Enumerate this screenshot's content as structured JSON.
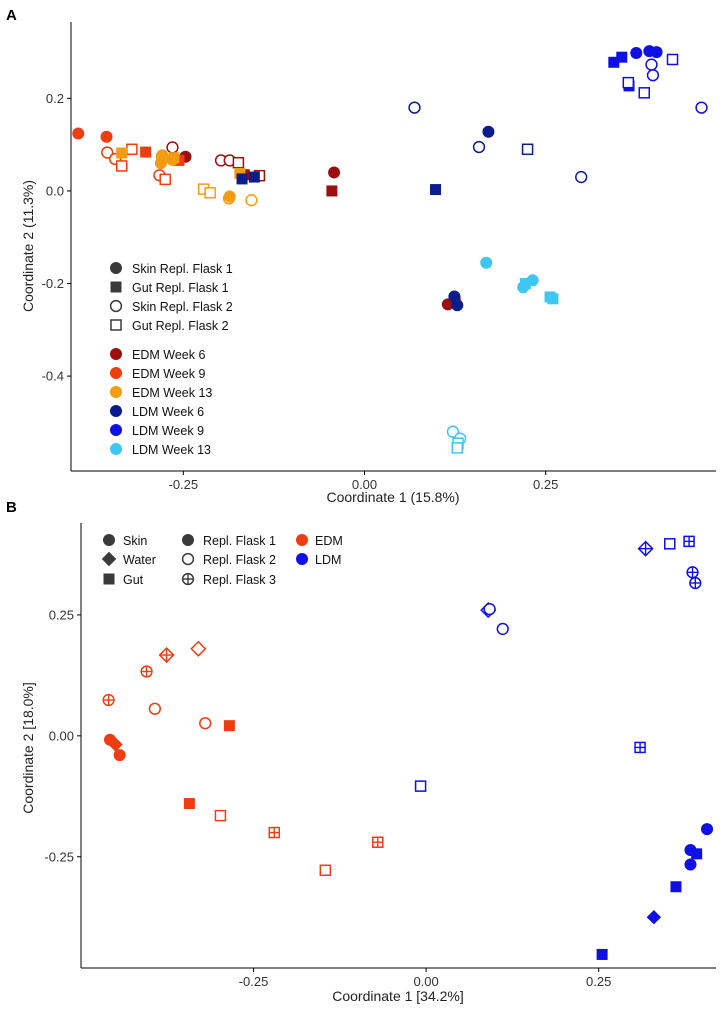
{
  "figure": {
    "colors": {
      "EDM Week 6": "#9b0f0f",
      "EDM Week 9": "#ee3d10",
      "EDM Week 13": "#f39c12",
      "LDM Week 6": "#0b1d8c",
      "LDM Week 9": "#1010e6",
      "LDM Week 13": "#3ec7f2",
      "EDM": "#ee3d10",
      "LDM": "#1010e6",
      "legend_gray": "#3a3a3a"
    }
  },
  "chart_data": [
    {
      "panel": "A",
      "type": "scatter",
      "title": "",
      "xlabel": "Coordinate 1 (15.8%)",
      "ylabel": "Coordinate 2 (11.3%)",
      "xlim": [
        -0.405,
        0.485
      ],
      "ylim": [
        -0.605,
        0.365
      ],
      "xticks": [
        {
          "value": -0.25,
          "label": "-0.25"
        },
        {
          "value": 0,
          "label": "0.00"
        },
        {
          "value": 0.25,
          "label": "0.25"
        }
      ],
      "yticks": [
        {
          "value": 0.2,
          "label": "0.2"
        },
        {
          "value": 0,
          "label": "0.0"
        },
        {
          "value": -0.2,
          "label": "-0.2"
        },
        {
          "value": -0.4,
          "label": "-0.4"
        }
      ],
      "legend": {
        "placement": "bottom-left",
        "shapes": [
          {
            "label": "Skin Repl. Flask 1",
            "shape": "circle",
            "filled": true
          },
          {
            "label": "Gut Repl. Flask 1",
            "shape": "square",
            "filled": true
          },
          {
            "label": "Skin Repl. Flask 2",
            "shape": "circle",
            "filled": false
          },
          {
            "label": "Gut Repl. Flask 2",
            "shape": "square",
            "filled": false
          }
        ],
        "groups": [
          "EDM Week 6",
          "EDM Week 9",
          "EDM Week 13",
          "LDM Week 6",
          "LDM Week 9",
          "LDM Week 13"
        ]
      },
      "points": [
        {
          "x": -0.042,
          "y": 0.04,
          "group": "EDM Week 6",
          "shape": "circle",
          "filled": true
        },
        {
          "x": -0.045,
          "y": 0.0,
          "group": "EDM Week 6",
          "shape": "square",
          "filled": true
        },
        {
          "x": 0.115,
          "y": -0.245,
          "group": "EDM Week 6",
          "shape": "circle",
          "filled": true
        },
        {
          "x": 0.125,
          "y": -0.24,
          "group": "EDM Week 6",
          "shape": "square",
          "filled": true
        },
        {
          "x": -0.247,
          "y": 0.074,
          "group": "EDM Week 6",
          "shape": "circle",
          "filled": true
        },
        {
          "x": -0.198,
          "y": 0.066,
          "group": "EDM Week 6",
          "shape": "circle",
          "filled": false
        },
        {
          "x": -0.186,
          "y": 0.066,
          "group": "EDM Week 6",
          "shape": "circle",
          "filled": false
        },
        {
          "x": -0.265,
          "y": 0.094,
          "group": "EDM Week 6",
          "shape": "circle",
          "filled": false
        },
        {
          "x": -0.174,
          "y": 0.061,
          "group": "EDM Week 6",
          "shape": "square",
          "filled": false
        },
        {
          "x": -0.145,
          "y": 0.033,
          "group": "EDM Week 6",
          "shape": "square",
          "filled": false
        },
        {
          "x": -0.166,
          "y": 0.035,
          "group": "EDM Week 6",
          "shape": "square",
          "filled": true
        },
        {
          "x": -0.395,
          "y": 0.124,
          "group": "EDM Week 9",
          "shape": "circle",
          "filled": true
        },
        {
          "x": -0.356,
          "y": 0.117,
          "group": "EDM Week 9",
          "shape": "circle",
          "filled": true
        },
        {
          "x": -0.302,
          "y": 0.084,
          "group": "EDM Week 9",
          "shape": "square",
          "filled": true
        },
        {
          "x": -0.256,
          "y": 0.066,
          "group": "EDM Week 9",
          "shape": "square",
          "filled": true
        },
        {
          "x": -0.355,
          "y": 0.083,
          "group": "EDM Week 9",
          "shape": "circle",
          "filled": false
        },
        {
          "x": -0.344,
          "y": 0.069,
          "group": "EDM Week 9",
          "shape": "circle",
          "filled": false
        },
        {
          "x": -0.283,
          "y": 0.034,
          "group": "EDM Week 9",
          "shape": "circle",
          "filled": false
        },
        {
          "x": -0.321,
          "y": 0.09,
          "group": "EDM Week 9",
          "shape": "square",
          "filled": false
        },
        {
          "x": -0.335,
          "y": 0.054,
          "group": "EDM Week 9",
          "shape": "square",
          "filled": false
        },
        {
          "x": -0.275,
          "y": 0.025,
          "group": "EDM Week 9",
          "shape": "square",
          "filled": false
        },
        {
          "x": -0.335,
          "y": 0.082,
          "group": "EDM Week 13",
          "shape": "square",
          "filled": true
        },
        {
          "x": -0.279,
          "y": 0.077,
          "group": "EDM Week 13",
          "shape": "circle",
          "filled": true
        },
        {
          "x": -0.265,
          "y": 0.067,
          "group": "EDM Week 13",
          "shape": "circle",
          "filled": true
        },
        {
          "x": -0.281,
          "y": 0.06,
          "group": "EDM Week 13",
          "shape": "circle",
          "filled": true
        },
        {
          "x": -0.263,
          "y": 0.072,
          "group": "EDM Week 13",
          "shape": "square",
          "filled": true
        },
        {
          "x": -0.28,
          "y": 0.07,
          "group": "EDM Week 13",
          "shape": "square",
          "filled": true
        },
        {
          "x": -0.172,
          "y": 0.038,
          "group": "EDM Week 13",
          "shape": "square",
          "filled": true
        },
        {
          "x": -0.222,
          "y": 0.004,
          "group": "EDM Week 13",
          "shape": "square",
          "filled": false
        },
        {
          "x": -0.213,
          "y": -0.004,
          "group": "EDM Week 13",
          "shape": "square",
          "filled": false
        },
        {
          "x": -0.187,
          "y": -0.016,
          "group": "EDM Week 13",
          "shape": "circle",
          "filled": false
        },
        {
          "x": -0.156,
          "y": -0.02,
          "group": "EDM Week 13",
          "shape": "circle",
          "filled": false
        },
        {
          "x": -0.186,
          "y": -0.012,
          "group": "EDM Week 13",
          "shape": "circle",
          "filled": true
        },
        {
          "x": -0.169,
          "y": 0.026,
          "group": "LDM Week 6",
          "shape": "square",
          "filled": true
        },
        {
          "x": -0.152,
          "y": 0.03,
          "group": "LDM Week 6",
          "shape": "square",
          "filled": true
        },
        {
          "x": 0.098,
          "y": 0.003,
          "group": "LDM Week 6",
          "shape": "square",
          "filled": true
        },
        {
          "x": 0.171,
          "y": 0.128,
          "group": "LDM Week 6",
          "shape": "circle",
          "filled": true
        },
        {
          "x": 0.124,
          "y": -0.228,
          "group": "LDM Week 6",
          "shape": "circle",
          "filled": true
        },
        {
          "x": 0.128,
          "y": -0.247,
          "group": "LDM Week 6",
          "shape": "circle",
          "filled": true
        },
        {
          "x": 0.069,
          "y": 0.18,
          "group": "LDM Week 6",
          "shape": "circle",
          "filled": false
        },
        {
          "x": 0.158,
          "y": 0.095,
          "group": "LDM Week 6",
          "shape": "circle",
          "filled": false
        },
        {
          "x": 0.225,
          "y": 0.09,
          "group": "LDM Week 6",
          "shape": "square",
          "filled": false
        },
        {
          "x": 0.299,
          "y": 0.03,
          "group": "LDM Week 6",
          "shape": "circle",
          "filled": false
        },
        {
          "x": 0.375,
          "y": 0.298,
          "group": "LDM Week 9",
          "shape": "circle",
          "filled": true
        },
        {
          "x": 0.393,
          "y": 0.302,
          "group": "LDM Week 9",
          "shape": "circle",
          "filled": true
        },
        {
          "x": 0.403,
          "y": 0.3,
          "group": "LDM Week 9",
          "shape": "circle",
          "filled": true
        },
        {
          "x": 0.344,
          "y": 0.278,
          "group": "LDM Week 9",
          "shape": "square",
          "filled": true
        },
        {
          "x": 0.355,
          "y": 0.289,
          "group": "LDM Week 9",
          "shape": "square",
          "filled": true
        },
        {
          "x": 0.365,
          "y": 0.227,
          "group": "LDM Week 9",
          "shape": "square",
          "filled": true
        },
        {
          "x": 0.364,
          "y": 0.234,
          "group": "LDM Week 9",
          "shape": "square",
          "filled": false
        },
        {
          "x": 0.386,
          "y": 0.212,
          "group": "LDM Week 9",
          "shape": "square",
          "filled": false
        },
        {
          "x": 0.425,
          "y": 0.284,
          "group": "LDM Week 9",
          "shape": "square",
          "filled": false
        },
        {
          "x": 0.396,
          "y": 0.273,
          "group": "LDM Week 9",
          "shape": "circle",
          "filled": false
        },
        {
          "x": 0.398,
          "y": 0.25,
          "group": "LDM Week 9",
          "shape": "circle",
          "filled": false
        },
        {
          "x": 0.465,
          "y": 0.18,
          "group": "LDM Week 9",
          "shape": "circle",
          "filled": false
        },
        {
          "x": 0.168,
          "y": -0.155,
          "group": "LDM Week 13",
          "shape": "circle",
          "filled": true
        },
        {
          "x": 0.219,
          "y": -0.208,
          "group": "LDM Week 13",
          "shape": "circle",
          "filled": true
        },
        {
          "x": 0.232,
          "y": -0.193,
          "group": "LDM Week 13",
          "shape": "circle",
          "filled": true
        },
        {
          "x": 0.222,
          "y": -0.2,
          "group": "LDM Week 13",
          "shape": "square",
          "filled": true
        },
        {
          "x": 0.256,
          "y": -0.229,
          "group": "LDM Week 13",
          "shape": "square",
          "filled": true
        },
        {
          "x": 0.26,
          "y": -0.233,
          "group": "LDM Week 13",
          "shape": "square",
          "filled": true
        },
        {
          "x": 0.122,
          "y": -0.52,
          "group": "LDM Week 13",
          "shape": "circle",
          "filled": false
        },
        {
          "x": 0.132,
          "y": -0.535,
          "group": "LDM Week 13",
          "shape": "circle",
          "filled": false
        },
        {
          "x": 0.129,
          "y": -0.545,
          "group": "LDM Week 13",
          "shape": "square",
          "filled": false
        },
        {
          "x": 0.128,
          "y": -0.555,
          "group": "LDM Week 13",
          "shape": "square",
          "filled": false
        }
      ]
    },
    {
      "panel": "B",
      "type": "scatter",
      "title": "",
      "xlabel": "Coordinate 1 [34.2%]",
      "ylabel": "Coordinate 2 [18.0%]",
      "xlim": [
        -0.5,
        0.42
      ],
      "ylim": [
        -0.48,
        0.44
      ],
      "xticks": [
        {
          "value": -0.25,
          "label": "-0.25"
        },
        {
          "value": 0,
          "label": "0.00"
        },
        {
          "value": 0.25,
          "label": "0.25"
        }
      ],
      "yticks": [
        {
          "value": 0.25,
          "label": "0.25"
        },
        {
          "value": 0,
          "label": "0.00"
        },
        {
          "value": -0.25,
          "label": "-0.25"
        }
      ],
      "legend": {
        "placement": "top-left",
        "sources": [
          {
            "label": "Skin",
            "shape": "circle"
          },
          {
            "label": "Water",
            "shape": "diamond"
          },
          {
            "label": "Gut",
            "shape": "square"
          }
        ],
        "flasks": [
          {
            "label": "Repl. Flask 1",
            "fill": "filled"
          },
          {
            "label": "Repl. Flask 2",
            "fill": "open"
          },
          {
            "label": "Repl. Flask 3",
            "fill": "crossed"
          }
        ],
        "groups": [
          "EDM",
          "LDM"
        ]
      },
      "points": [
        {
          "x": -0.458,
          "y": -0.008,
          "group": "EDM",
          "shape": "circle",
          "fill": "filled"
        },
        {
          "x": -0.45,
          "y": -0.018,
          "group": "EDM",
          "shape": "diamond",
          "fill": "filled"
        },
        {
          "x": -0.444,
          "y": -0.04,
          "group": "EDM",
          "shape": "circle",
          "fill": "filled"
        },
        {
          "x": -0.46,
          "y": 0.074,
          "group": "EDM",
          "shape": "circle",
          "fill": "crossed"
        },
        {
          "x": -0.405,
          "y": 0.133,
          "group": "EDM",
          "shape": "circle",
          "fill": "crossed"
        },
        {
          "x": -0.376,
          "y": 0.167,
          "group": "EDM",
          "shape": "diamond",
          "fill": "crossed"
        },
        {
          "x": -0.33,
          "y": 0.18,
          "group": "EDM",
          "shape": "diamond",
          "fill": "open"
        },
        {
          "x": -0.393,
          "y": 0.056,
          "group": "EDM",
          "shape": "circle",
          "fill": "open"
        },
        {
          "x": -0.32,
          "y": 0.026,
          "group": "EDM",
          "shape": "circle",
          "fill": "open"
        },
        {
          "x": -0.285,
          "y": 0.021,
          "group": "EDM",
          "shape": "square",
          "fill": "filled"
        },
        {
          "x": -0.343,
          "y": -0.14,
          "group": "EDM",
          "shape": "square",
          "fill": "filled"
        },
        {
          "x": -0.298,
          "y": -0.165,
          "group": "EDM",
          "shape": "square",
          "fill": "open"
        },
        {
          "x": -0.22,
          "y": -0.2,
          "group": "EDM",
          "shape": "square",
          "fill": "crossed"
        },
        {
          "x": -0.146,
          "y": -0.278,
          "group": "EDM",
          "shape": "square",
          "fill": "open"
        },
        {
          "x": -0.07,
          "y": -0.22,
          "group": "EDM",
          "shape": "square",
          "fill": "crossed"
        },
        {
          "x": -0.008,
          "y": -0.104,
          "group": "LDM",
          "shape": "square",
          "fill": "open"
        },
        {
          "x": 0.09,
          "y": 0.26,
          "group": "LDM",
          "shape": "diamond",
          "fill": "open"
        },
        {
          "x": 0.092,
          "y": 0.262,
          "group": "LDM",
          "shape": "circle",
          "fill": "open"
        },
        {
          "x": 0.111,
          "y": 0.221,
          "group": "LDM",
          "shape": "circle",
          "fill": "open"
        },
        {
          "x": 0.318,
          "y": 0.387,
          "group": "LDM",
          "shape": "diamond",
          "fill": "crossed"
        },
        {
          "x": 0.353,
          "y": 0.397,
          "group": "LDM",
          "shape": "square",
          "fill": "open"
        },
        {
          "x": 0.381,
          "y": 0.402,
          "group": "LDM",
          "shape": "square",
          "fill": "crossed"
        },
        {
          "x": 0.386,
          "y": 0.338,
          "group": "LDM",
          "shape": "circle",
          "fill": "crossed"
        },
        {
          "x": 0.39,
          "y": 0.316,
          "group": "LDM",
          "shape": "circle",
          "fill": "crossed"
        },
        {
          "x": 0.31,
          "y": -0.024,
          "group": "LDM",
          "shape": "square",
          "fill": "crossed"
        },
        {
          "x": 0.407,
          "y": -0.193,
          "group": "LDM",
          "shape": "circle",
          "fill": "filled"
        },
        {
          "x": 0.383,
          "y": -0.236,
          "group": "LDM",
          "shape": "circle",
          "fill": "filled"
        },
        {
          "x": 0.392,
          "y": -0.244,
          "group": "LDM",
          "shape": "square",
          "fill": "filled"
        },
        {
          "x": 0.383,
          "y": -0.266,
          "group": "LDM",
          "shape": "circle",
          "fill": "filled"
        },
        {
          "x": 0.362,
          "y": -0.312,
          "group": "LDM",
          "shape": "square",
          "fill": "filled"
        },
        {
          "x": 0.33,
          "y": -0.375,
          "group": "LDM",
          "shape": "diamond",
          "fill": "filled"
        },
        {
          "x": 0.255,
          "y": -0.452,
          "group": "LDM",
          "shape": "square",
          "fill": "filled"
        }
      ]
    }
  ]
}
